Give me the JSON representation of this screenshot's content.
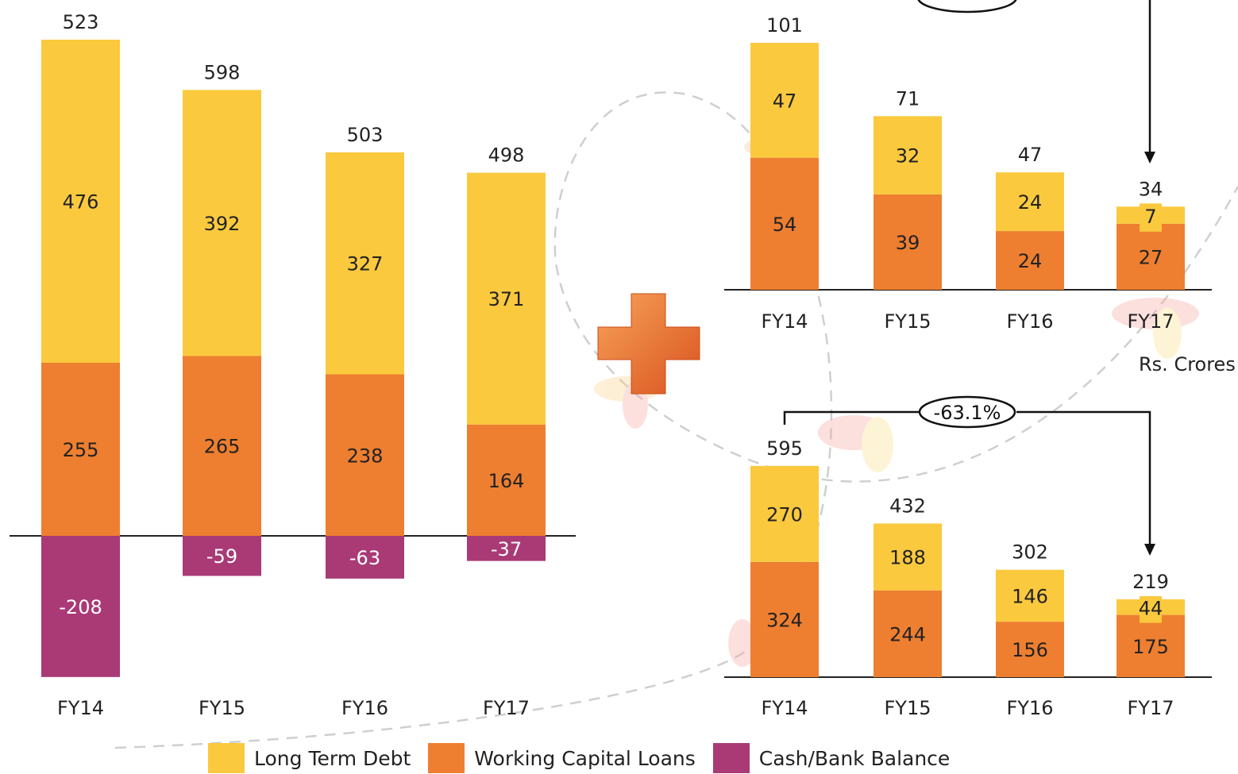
{
  "colors": {
    "long_term_debt": "#FBC93E",
    "working_capital": "#EE7F30",
    "cash_bank": "#A93A76",
    "axis": "#222222",
    "decoration": "#CCCCCC"
  },
  "unit_note": "Rs. Crores",
  "legend": [
    {
      "label": "Long Term Debt",
      "color_key": "long_term_debt"
    },
    {
      "label": "Working Capital Loans",
      "color_key": "working_capital"
    },
    {
      "label": "Cash/Bank Balance",
      "color_key": "cash_bank"
    }
  ],
  "chart_data": [
    {
      "type": "bar",
      "stacked": true,
      "categories": [
        "FY14",
        "FY15",
        "FY16",
        "FY17"
      ],
      "series": [
        {
          "name": "Working Capital Loans",
          "values": [
            255,
            265,
            238,
            164
          ]
        },
        {
          "name": "Long Term Debt",
          "values": [
            476,
            392,
            327,
            371
          ]
        },
        {
          "name": "Cash/Bank Balance",
          "values": [
            -208,
            -59,
            -63,
            -37
          ]
        }
      ],
      "totals": [
        523,
        598,
        503,
        498
      ]
    },
    {
      "type": "bar",
      "stacked": true,
      "categories": [
        "FY14",
        "FY15",
        "FY16",
        "FY17"
      ],
      "series": [
        {
          "name": "Working Capital Loans",
          "values": [
            54,
            39,
            24,
            27
          ]
        },
        {
          "name": "Long Term Debt",
          "values": [
            47,
            32,
            24,
            7
          ]
        }
      ],
      "totals": [
        101,
        71,
        47,
        34
      ]
    },
    {
      "type": "bar",
      "stacked": true,
      "categories": [
        "FY14",
        "FY15",
        "FY16",
        "FY17"
      ],
      "series": [
        {
          "name": "Working Capital Loans",
          "values": [
            324,
            244,
            156,
            175
          ]
        },
        {
          "name": "Long Term Debt",
          "values": [
            270,
            188,
            146,
            44
          ]
        }
      ],
      "totals": [
        595,
        432,
        302,
        219
      ],
      "annotation": "-63.1%"
    }
  ]
}
